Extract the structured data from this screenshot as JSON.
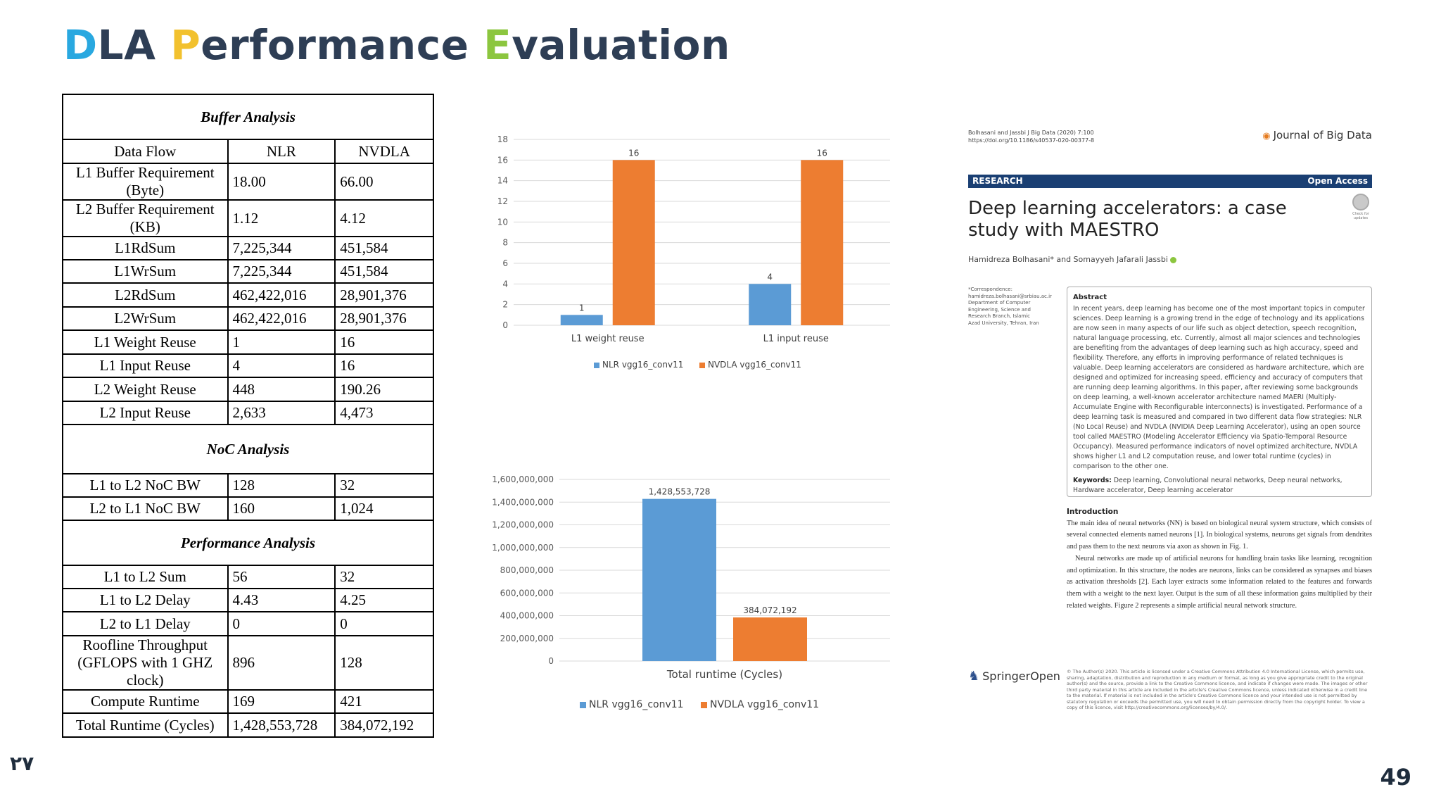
{
  "slide": {
    "title_parts": [
      {
        "text": "D",
        "color": "#29a8e0"
      },
      {
        "text": "LA ",
        "color": "#2e3e55"
      },
      {
        "text": "P",
        "color": "#f2c12e"
      },
      {
        "text": "erformance ",
        "color": "#2e3e55"
      },
      {
        "text": "E",
        "color": "#8cc63f"
      },
      {
        "text": "valuation",
        "color": "#2e3e55"
      }
    ],
    "page_number_left": "۲۷",
    "page_number_right": "49"
  },
  "table": {
    "buffer_title": "Buffer Analysis",
    "header": [
      "Data Flow",
      "NLR",
      "NVDLA"
    ],
    "buffer_rows": [
      [
        "L1 Buffer Requirement (Byte)",
        "18.00",
        "66.00"
      ],
      [
        "L2 Buffer Requirement (KB)",
        "1.12",
        "4.12"
      ],
      [
        "L1RdSum",
        "7,225,344",
        "451,584"
      ],
      [
        "L1WrSum",
        "7,225,344",
        "451,584"
      ],
      [
        "L2RdSum",
        "462,422,016",
        "28,901,376"
      ],
      [
        "L2WrSum",
        "462,422,016",
        "28,901,376"
      ],
      [
        "L1 Weight Reuse",
        "1",
        "16"
      ],
      [
        "L1 Input Reuse",
        "4",
        "16"
      ],
      [
        "L2 Weight Reuse",
        "448",
        "190.26"
      ],
      [
        "L2 Input Reuse",
        "2,633",
        "4,473"
      ]
    ],
    "noc_title": "NoC Analysis",
    "noc_rows": [
      [
        "L1 to L2 NoC BW",
        "128",
        "32"
      ],
      [
        "L2 to L1 NoC BW",
        "160",
        "1,024"
      ]
    ],
    "perf_title": "Performance Analysis",
    "perf_rows": [
      [
        "L1 to L2 Sum",
        "56",
        "32"
      ],
      [
        "L1 to L2 Delay",
        "4.43",
        "4.25"
      ],
      [
        "L2 to L1 Delay",
        "0",
        "0"
      ],
      [
        "Roofline Throughput (GFLOPS with 1 GHZ clock)",
        "896",
        "128"
      ],
      [
        "Compute Runtime",
        "169",
        "421"
      ],
      [
        "Total Runtime (Cycles)",
        "1,428,553,728",
        "384,072,192"
      ]
    ]
  },
  "chart_data": [
    {
      "type": "bar",
      "categories": [
        "L1 weight reuse",
        "L1 input reuse"
      ],
      "series": [
        {
          "name": "NLR vgg16_conv11",
          "values": [
            1,
            4
          ],
          "color": "#5b9bd5"
        },
        {
          "name": "NVDLA vgg16_conv11",
          "values": [
            16,
            16
          ],
          "color": "#ed7d31"
        }
      ],
      "data_labels": [
        [
          "1",
          "4"
        ],
        [
          "16",
          "16"
        ]
      ],
      "yticks": [
        "0",
        "2",
        "4",
        "6",
        "8",
        "10",
        "12",
        "14",
        "16",
        "18"
      ],
      "ylim": [
        0,
        18
      ],
      "grid": true,
      "legend": "bottom"
    },
    {
      "type": "bar",
      "categories": [
        "Total runtime (Cycles)"
      ],
      "series": [
        {
          "name": "NLR vgg16_conv11",
          "values": [
            1428553728
          ],
          "color": "#5b9bd5"
        },
        {
          "name": "NVDLA vgg16_conv11",
          "values": [
            384072192
          ],
          "color": "#ed7d31"
        }
      ],
      "data_labels": [
        [
          "1,428,553,728"
        ],
        [
          "384,072,192"
        ]
      ],
      "yticks": [
        "0",
        "200,000,000",
        "400,000,000",
        "600,000,000",
        "800,000,000",
        "1,000,000,000",
        "1,200,000,000",
        "1,400,000,000",
        "1,600,000,000"
      ],
      "ylim": [
        0,
        1600000000
      ],
      "grid": true,
      "legend": "bottom"
    }
  ],
  "paper": {
    "citation": "Bolhasani and Jassbi J Big Data (2020) 7:100",
    "doi": "https://doi.org/10.1186/s40537-020-00377-8",
    "journal": "Journal of Big Data",
    "band_left": "RESEARCH",
    "band_right": "Open Access",
    "title": "Deep learning accelerators: a case study with MAESTRO",
    "check_label": "Check for updates",
    "authors": "Hamidreza Bolhasani* and Somayyeh Jafarali Jassbi",
    "correspondence": "*Correspondence: hamidreza.bolhasani@srbiau.ac.ir Department of Computer Engineering, Science and Research Branch, Islamic Azad University, Tehran, Iran",
    "abstract_title": "Abstract",
    "abstract_text": "In recent years, deep learning has become one of the most important topics in computer sciences. Deep learning is a growing trend in the edge of technology and its applications are now seen in many aspects of our life such as object detection, speech recognition, natural language processing, etc. Currently, almost all major sciences and technologies are benefiting from the advantages of deep learning such as high accuracy, speed and flexibility. Therefore, any efforts in improving performance of related techniques is valuable. Deep learning accelerators are considered as hardware architecture, which are designed and optimized for increasing speed, efficiency and accuracy of computers that are running deep learning algorithms. In this paper, after reviewing some backgrounds on deep learning, a well-known accelerator architecture named MAERI (Multiply-Accumulate Engine with Reconfigurable interconnects) is investigated. Performance of a deep learning task is measured and compared in two different data flow strategies: NLR (No Local Reuse) and NVDLA (NVIDIA Deep Learning Accelerator), using an open source tool called MAESTRO (Modeling Accelerator Efficiency via Spatio-Temporal Resource Occupancy). Measured performance indicators of novel optimized architecture, NVDLA shows higher L1 and L2 computation reuse, and lower total runtime (cycles) in comparison to the other one.",
    "keywords_label": "Keywords:",
    "keywords": "Deep learning, Convolutional neural networks, Deep neural networks, Hardware accelerator, Deep learning accelerator",
    "intro_title": "Introduction",
    "intro_p1": "The main idea of neural networks (NN) is based on biological neural system structure, which consists of several connected elements named neurons [1]. In biological systems, neurons get signals from dendrites and pass them to the next neurons via axon as shown in Fig. 1.",
    "intro_p2": "Neural networks are made up of artificial neurons for handling brain tasks like learning, recognition and optimization. In this structure, the nodes are neurons, links can be considered as synapses and biases as activation thresholds [2]. Each layer extracts some information related to the features and forwards them with a weight to the next layer. Output is the sum of all these information gains multiplied by their related weights. Figure 2 represents a simple artificial neural network structure.",
    "publisher": "SpringerOpen",
    "license": "© The Author(s) 2020. This article is licensed under a Creative Commons Attribution 4.0 International License, which permits use, sharing, adaptation, distribution and reproduction in any medium or format, as long as you give appropriate credit to the original author(s) and the source, provide a link to the Creative Commons licence, and indicate if changes were made. The images or other third party material in this article are included in the article's Creative Commons licence, unless indicated otherwise in a credit line to the material. If material is not included in the article's Creative Commons licence and your intended use is not permitted by statutory regulation or exceeds the permitted use, you will need to obtain permission directly from the copyright holder. To view a copy of this licence, visit http://creativecommons.org/licenses/by/4.0/."
  }
}
